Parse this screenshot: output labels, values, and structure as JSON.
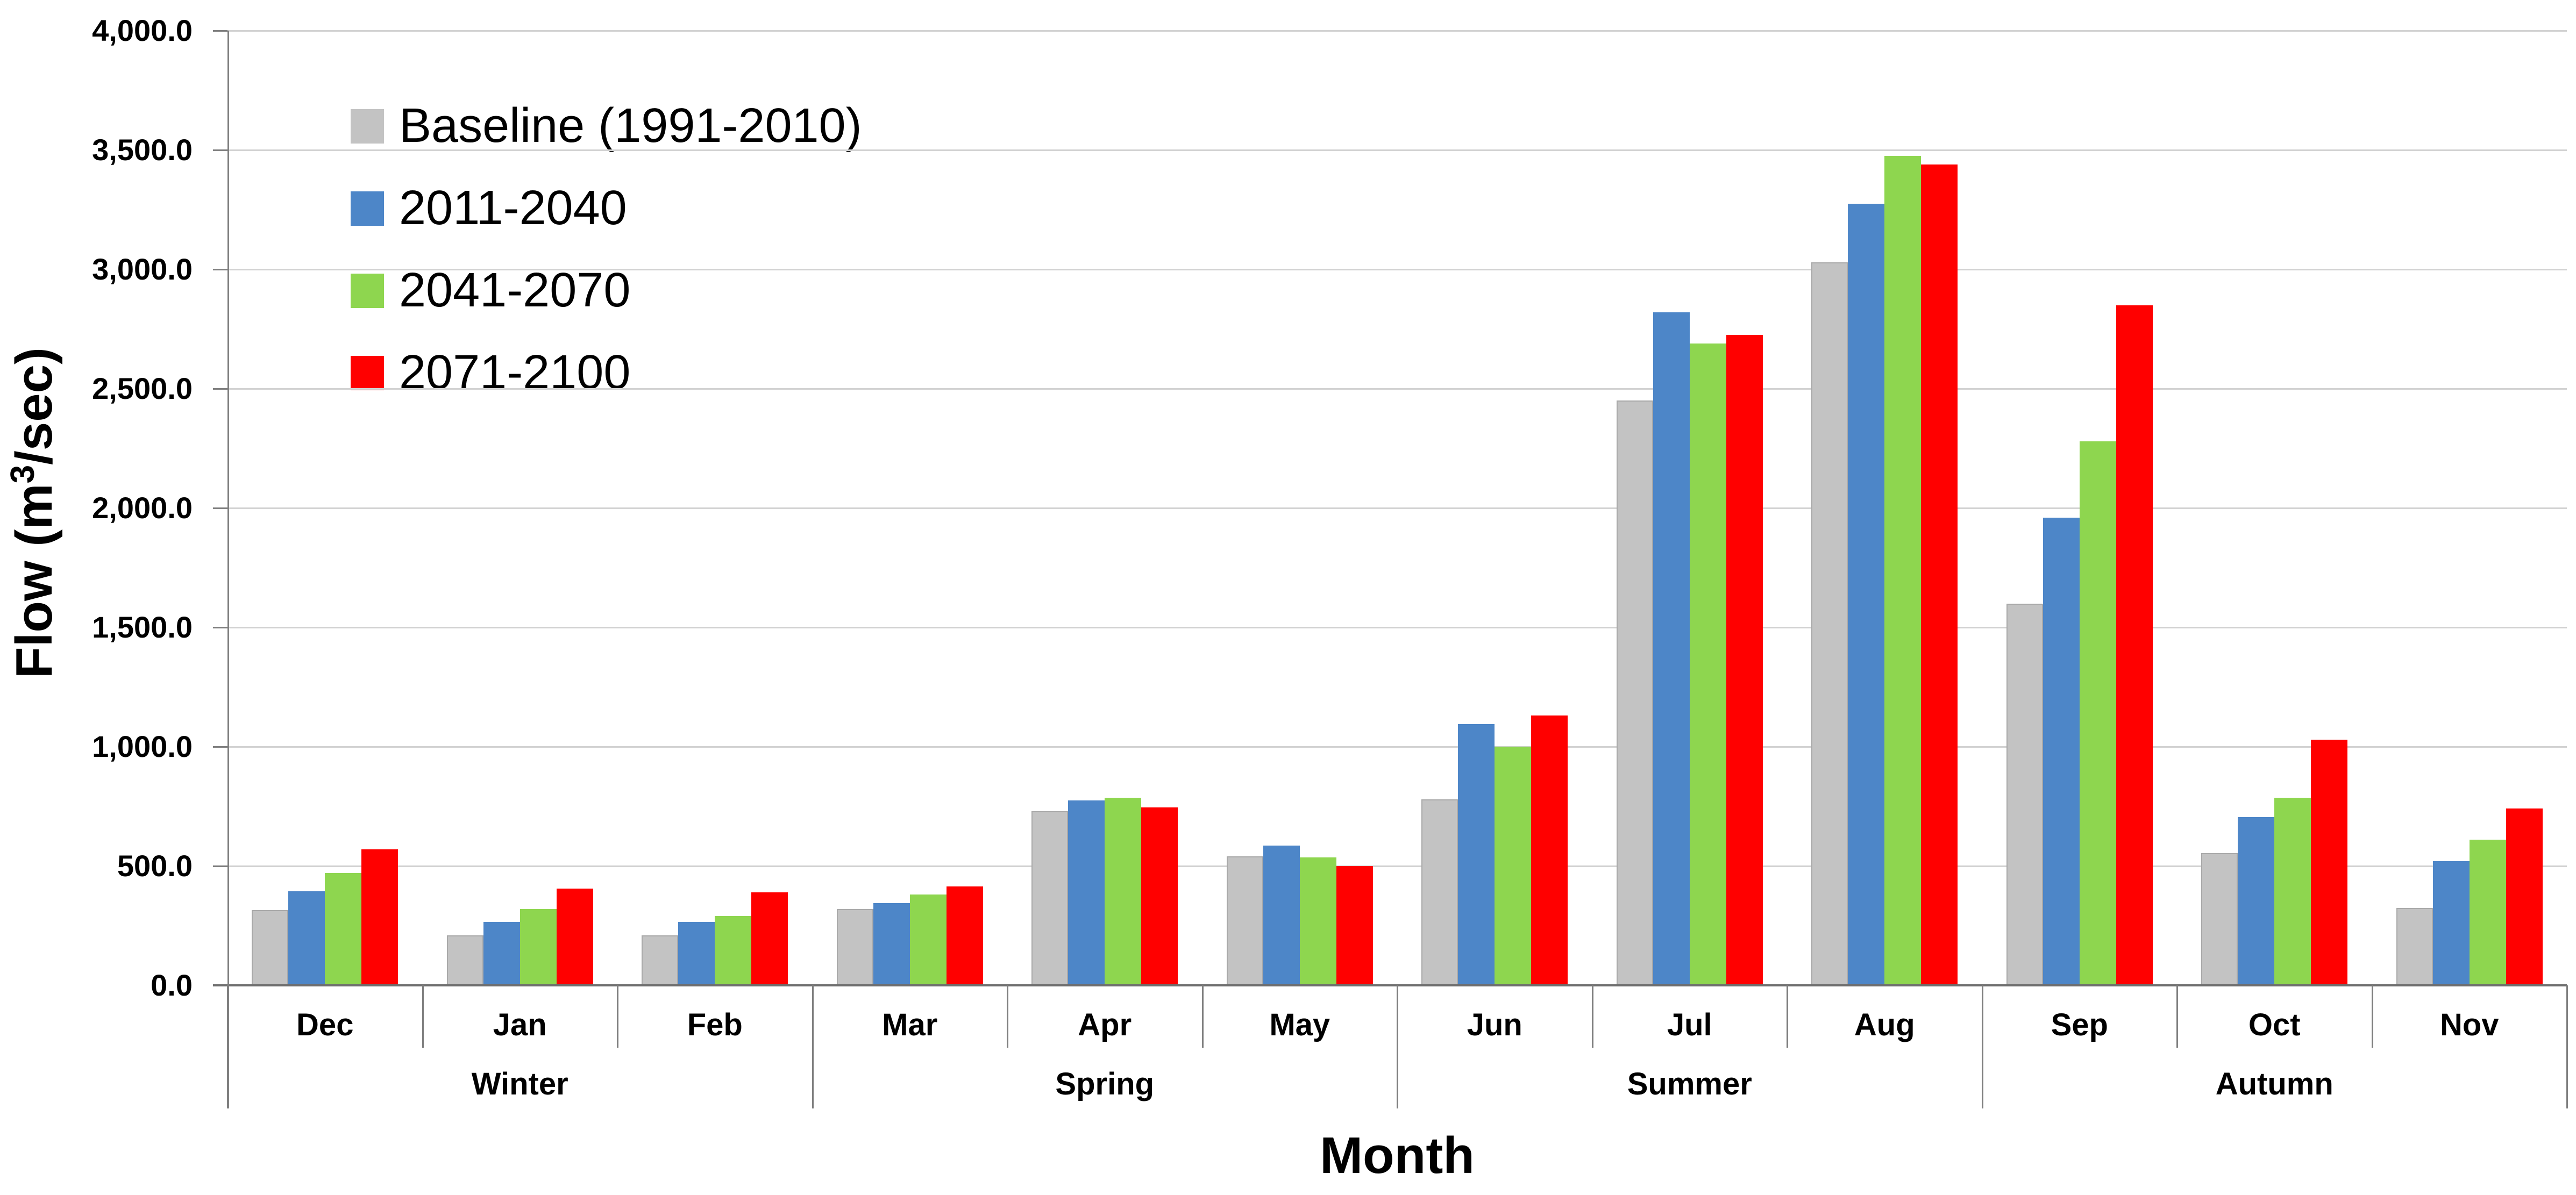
{
  "chart_data": {
    "type": "bar",
    "title": "",
    "xlabel": "Month",
    "ylabel": "Flow (m³/sec)",
    "ylabel_base": "Flow (m",
    "ylabel_sup": "3",
    "ylabel_tail": "/sec)",
    "ylim": [
      0,
      4000
    ],
    "ytick_step": 500,
    "ytick_labels": [
      "0.0",
      "500.0",
      "1,000.0",
      "1,500.0",
      "2,000.0",
      "2,500.0",
      "3,000.0",
      "3,500.0",
      "4,000.0"
    ],
    "grid": true,
    "legend_position": "top-left",
    "categories": [
      "Dec",
      "Jan",
      "Feb",
      "Mar",
      "Apr",
      "May",
      "Jun",
      "Jul",
      "Aug",
      "Sep",
      "Oct",
      "Nov"
    ],
    "season_groups": [
      {
        "label": "Winter",
        "months": [
          "Dec",
          "Jan",
          "Feb"
        ]
      },
      {
        "label": "Spring",
        "months": [
          "Mar",
          "Apr",
          "May"
        ]
      },
      {
        "label": "Summer",
        "months": [
          "Jun",
          "Jul",
          "Aug"
        ]
      },
      {
        "label": "Autumn",
        "months": [
          "Sep",
          "Oct",
          "Nov"
        ]
      }
    ],
    "series": [
      {
        "name": "Baseline (1991-2010)",
        "color": "#c3c3c3",
        "border": "#a9a9a9",
        "values": [
          315,
          210,
          210,
          320,
          730,
          540,
          780,
          2450,
          3030,
          1600,
          555,
          325
        ]
      },
      {
        "name": "2011-2040",
        "color": "#4d86c8",
        "border": "#4d86c8",
        "values": [
          395,
          265,
          265,
          345,
          775,
          585,
          1095,
          2820,
          3275,
          1960,
          705,
          520
        ]
      },
      {
        "name": "2041-2070",
        "color": "#8ed64f",
        "border": "#8ed64f",
        "values": [
          470,
          320,
          290,
          380,
          785,
          535,
          1000,
          2690,
          3475,
          2280,
          785,
          610
        ]
      },
      {
        "name": "2071-2100",
        "color": "#ff0000",
        "border": "#ff0000",
        "values": [
          570,
          405,
          390,
          415,
          745,
          500,
          1130,
          2725,
          3440,
          2850,
          1030,
          740
        ]
      }
    ]
  },
  "colors": {
    "background": "#ffffff",
    "gridline": "#d2d2d2",
    "axis": "#7f7f7f",
    "baseline": "#6e6e6e",
    "text": "#000000"
  }
}
